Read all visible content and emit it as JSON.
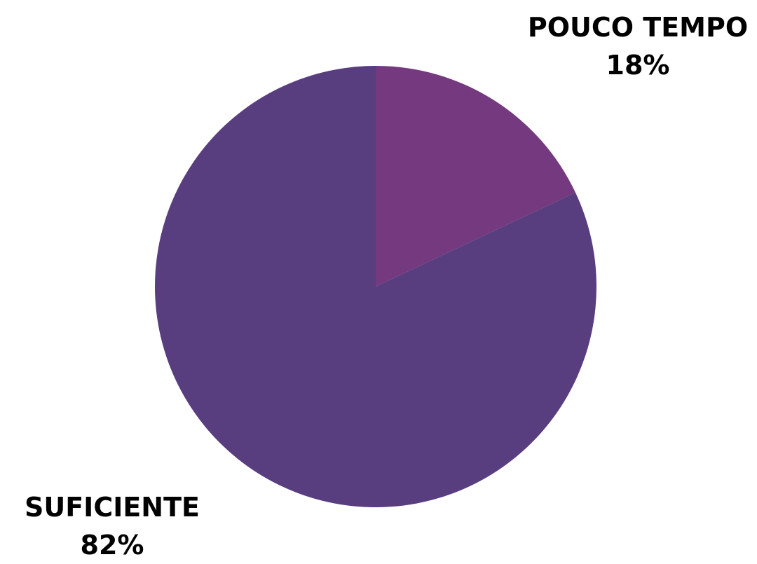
{
  "chart_data": {
    "type": "pie",
    "title": "",
    "start_angle_deg": 0,
    "direction": "clockwise",
    "slices": [
      {
        "label": "POUCO TEMPO",
        "value": 18,
        "value_label": "18%",
        "color": "#74397f"
      },
      {
        "label": "SUFICIENTE",
        "value": 82,
        "value_label": "82%",
        "color": "#583d7f"
      }
    ]
  }
}
